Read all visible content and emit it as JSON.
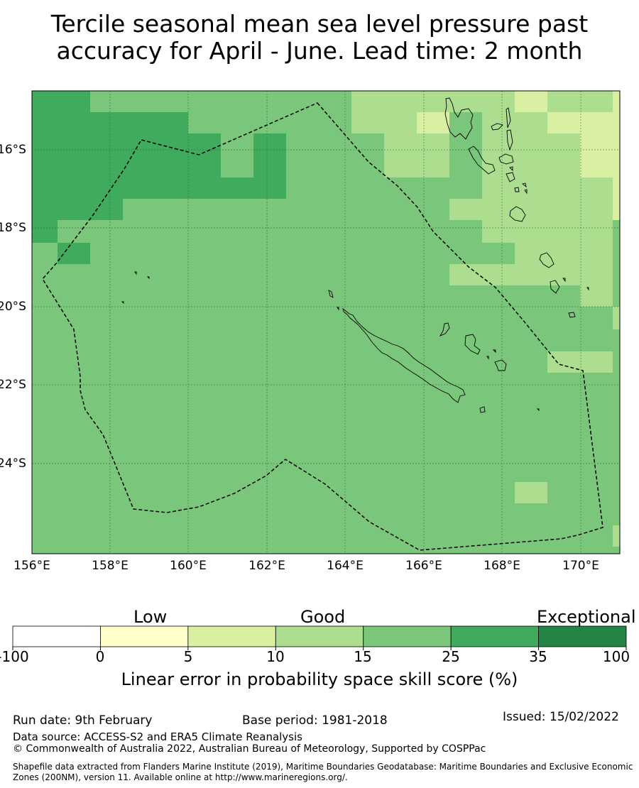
{
  "title": {
    "line1": "Tercile seasonal mean sea level pressure past",
    "line2": "accuracy for April - June. Lead time: 2 month"
  },
  "map": {
    "lon_range": [
      156,
      171
    ],
    "lat_range": [
      -26.5,
      -14.7
    ],
    "lat_labels": [
      "16°S",
      "18°S",
      "20°S",
      "22°S",
      "24°S"
    ],
    "lon_labels": [
      "156°E",
      "158°E",
      "160°E",
      "162°E",
      "164°E",
      "166°E",
      "168°E",
      "170°E"
    ],
    "cell_colors": {
      "c15": "#7ac77b",
      "c25": "#41ab5d",
      "c10": "#addd8e",
      "c5": "#d9f0a3",
      "c0": "#ffffcc"
    },
    "boundary_label": "maritime boundary (EEZ)"
  },
  "legend": {
    "categories": [
      "Low",
      "Good",
      "Exceptional"
    ],
    "ticks": [
      "-100",
      "0",
      "5",
      "10",
      "15",
      "25",
      "35",
      "100"
    ],
    "colors": [
      "#ffffff",
      "#ffffcc",
      "#d9f0a3",
      "#addd8e",
      "#7ac77b",
      "#41ab5d",
      "#238443"
    ],
    "label": "Linear error in probability space skill score (%)"
  },
  "footer": {
    "run_date": "Run date: 9th February",
    "base_period": "Base period: 1981-2018",
    "issued": "Issued: 15/02/2022",
    "data_source": "Data source: ACCESS-S2 and ERA5 Climate Reanalysis",
    "copyright": "© Commonwealth of Australia 2022, Australian Bureau of Meteorology, Supported by COSPPac",
    "shapefile": "Shapefile data extracted from Flanders Marine Institute (2019), Maritime Boundaries Geodatabase: Maritime Boundaries and Exclusive Economic Zones (200NM), version 11. Available online at http://www.marineregions.org/."
  }
}
